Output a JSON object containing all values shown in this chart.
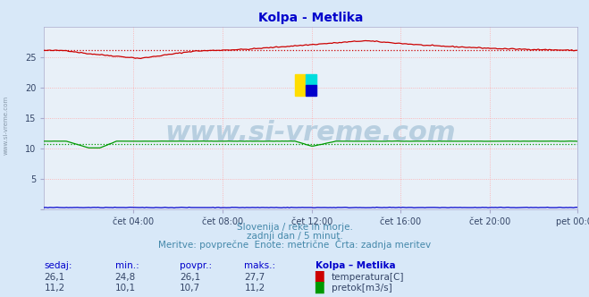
{
  "title": "Kolpa - Metlika",
  "title_color": "#0000cc",
  "bg_color": "#d8e8f8",
  "plot_bg_color": "#e8f0f8",
  "grid_color": "#ffaaaa",
  "grid_style": ":",
  "x_tick_labels": [
    "čet 04:00",
    "čet 08:00",
    "čet 12:00",
    "čet 16:00",
    "čet 20:00",
    "pet 00:00"
  ],
  "x_tick_positions": [
    48,
    96,
    144,
    192,
    240,
    287
  ],
  "y_ticks": [
    0,
    5,
    10,
    15,
    20,
    25
  ],
  "n_points": 288,
  "temp_avg": 26.1,
  "flow_avg": 10.7,
  "temp_color": "#cc0000",
  "flow_color": "#009900",
  "height_color": "#0000cc",
  "watermark": "www.si-vreme.com",
  "watermark_color": "#b8cfe0",
  "watermark_fontsize": 22,
  "subtitle1": "Slovenija / reke in morje.",
  "subtitle2": "zadnji dan / 5 minut.",
  "subtitle3": "Meritve: povprečne  Enote: metrične  Črta: zadnja meritev",
  "subtitle_color": "#4488aa",
  "subtitle_fontsize": 7.5,
  "col_header": [
    "sedaj:",
    "min.:",
    "povpr.:",
    "maks.:",
    "Kolpa – Metlika"
  ],
  "row1_vals": [
    "26,1",
    "24,8",
    "26,1",
    "27,7"
  ],
  "row2_vals": [
    "11,2",
    "10,1",
    "10,7",
    "11,2"
  ],
  "label_temp": "temperatura[C]",
  "label_flow": "pretok[m3/s]",
  "table_color": "#0000cc",
  "table_val_color": "#334466",
  "xmin": 0,
  "xmax": 287,
  "ymin": 0,
  "ymax": 30
}
